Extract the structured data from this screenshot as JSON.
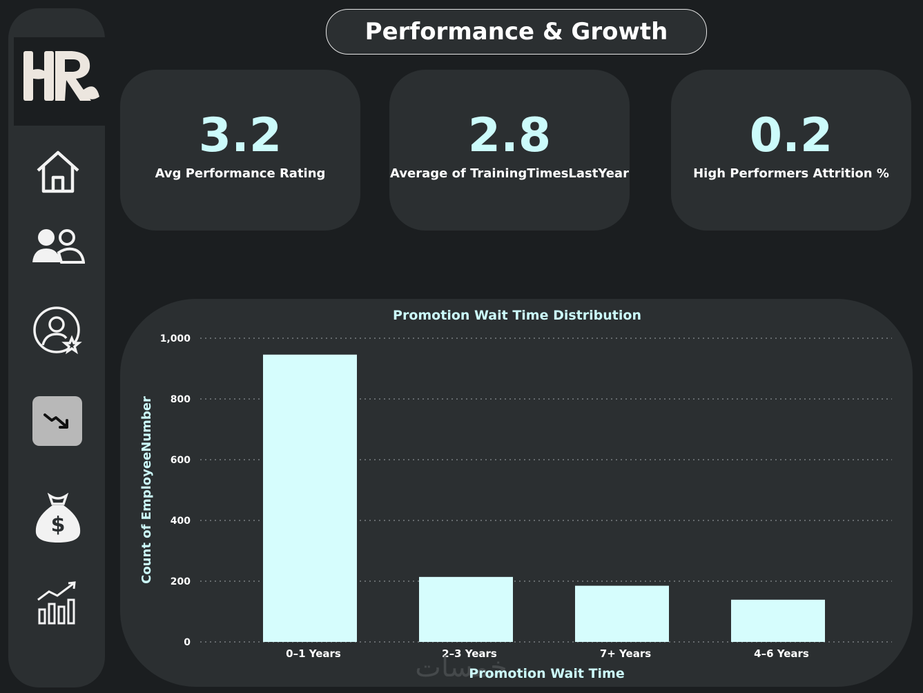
{
  "page": {
    "title": "Performance & Growth"
  },
  "sidebar": {
    "logo_text": "HR",
    "items": [
      {
        "name": "home-icon",
        "active": false
      },
      {
        "name": "employees-icon",
        "active": false
      },
      {
        "name": "performer-star-icon",
        "active": false
      },
      {
        "name": "attrition-trend-down-icon",
        "active": true
      },
      {
        "name": "money-bag-icon",
        "active": false
      },
      {
        "name": "growth-chart-icon",
        "active": false
      }
    ]
  },
  "kpis": [
    {
      "value": "3.2",
      "label": "Avg Performance Rating"
    },
    {
      "value": "2.8",
      "label": "Average of TrainingTimesLastYear"
    },
    {
      "value": "0.2",
      "label": "High Performers Attrition %"
    }
  ],
  "colors": {
    "accent": "#ccfbfb",
    "card": "#2b2f31",
    "background": "#1b1e20"
  },
  "watermark": "خمسات",
  "chart_data": {
    "type": "bar",
    "title": "Promotion Wait Time Distribution",
    "xlabel": "Promotion Wait Time",
    "ylabel": "Count of EmployeeNumber",
    "categories": [
      "0–1 Years",
      "2–3 Years",
      "7+ Years",
      "4–6 Years"
    ],
    "values": [
      946,
      214,
      185,
      139
    ],
    "ylim": [
      0,
      1000
    ],
    "yticks": [
      0,
      200,
      400,
      600,
      800,
      1000
    ],
    "ytick_labels": [
      "0",
      "200",
      "400",
      "600",
      "800",
      "1,000"
    ],
    "grid": true,
    "bar_color": "#d6fdfd"
  }
}
